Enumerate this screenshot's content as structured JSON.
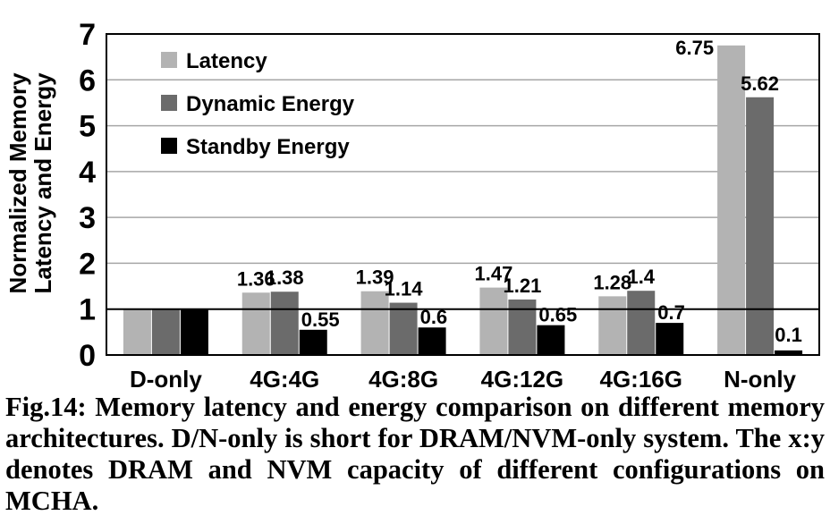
{
  "chart_data": {
    "type": "bar",
    "ylabel": "Normalized Memory\nLatency and Energy",
    "xlabel": "",
    "ylim": [
      0,
      7
    ],
    "yticks": [
      "0",
      "1",
      "2",
      "3",
      "4",
      "5",
      "6",
      "7"
    ],
    "grid": true,
    "legend_position": "top-left",
    "reference_line": 1,
    "categories": [
      "D-only",
      "4G:4G",
      "4G:8G",
      "4G:12G",
      "4G:16G",
      "N-only"
    ],
    "series": [
      {
        "name": "Latency",
        "color": "#b3b3b3",
        "values": [
          1,
          1.36,
          1.39,
          1.47,
          1.28,
          6.75
        ],
        "labels": [
          "",
          "1.36",
          "1.39",
          "1.47",
          "1.28",
          "6.75"
        ]
      },
      {
        "name": "Dynamic Energy",
        "color": "#6b6b6b",
        "values": [
          1,
          1.38,
          1.14,
          1.21,
          1.4,
          5.62
        ],
        "labels": [
          "",
          "1.38",
          "1.14",
          "1.21",
          "1.4",
          "5.62"
        ]
      },
      {
        "name": "Standby Energy",
        "color": "#000000",
        "values": [
          1,
          0.55,
          0.6,
          0.65,
          0.7,
          0.1
        ],
        "labels": [
          "",
          "0.55",
          "0.6",
          "0.65",
          "0.7",
          "0.1"
        ]
      }
    ]
  },
  "caption": "Fig.14: Memory latency and energy comparison on different memory architectures. D/N-only is short for DRAM/NVM-only system. The x:y denotes DRAM and NVM capacity of different configurations on MCHA."
}
